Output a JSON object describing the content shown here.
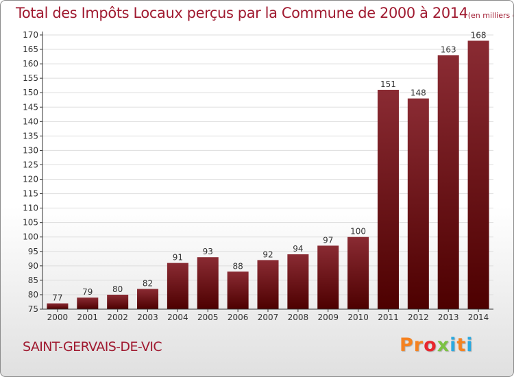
{
  "title": {
    "main": "Total des Impôts Locaux perçus par la Commune de 2000 à 2014",
    "unit": "(en milliers d'€)"
  },
  "commune": "SAINT-GERVAIS-DE-VIC",
  "logo": {
    "text": "Proxiti",
    "colors": [
      "#f58220",
      "#f58220",
      "#e8262d",
      "#7cc242",
      "#29a9e0",
      "#f58220",
      "#29a9e0"
    ]
  },
  "colors": {
    "bar_top": "#8a2b33",
    "bar_bottom": "#4d0000",
    "title": "#a01a30",
    "grid": "#dddddd",
    "axis": "#333333"
  },
  "chart_data": {
    "type": "bar",
    "categories": [
      "2000",
      "2001",
      "2002",
      "2003",
      "2004",
      "2005",
      "2006",
      "2007",
      "2008",
      "2009",
      "2010",
      "2011",
      "2012",
      "2013",
      "2014"
    ],
    "values": [
      77,
      79,
      80,
      82,
      91,
      93,
      88,
      92,
      94,
      97,
      100,
      151,
      148,
      163,
      168
    ],
    "ylim": [
      75,
      170
    ],
    "ytick_step": 5,
    "grid": true,
    "xlabel": "",
    "ylabel": ""
  }
}
